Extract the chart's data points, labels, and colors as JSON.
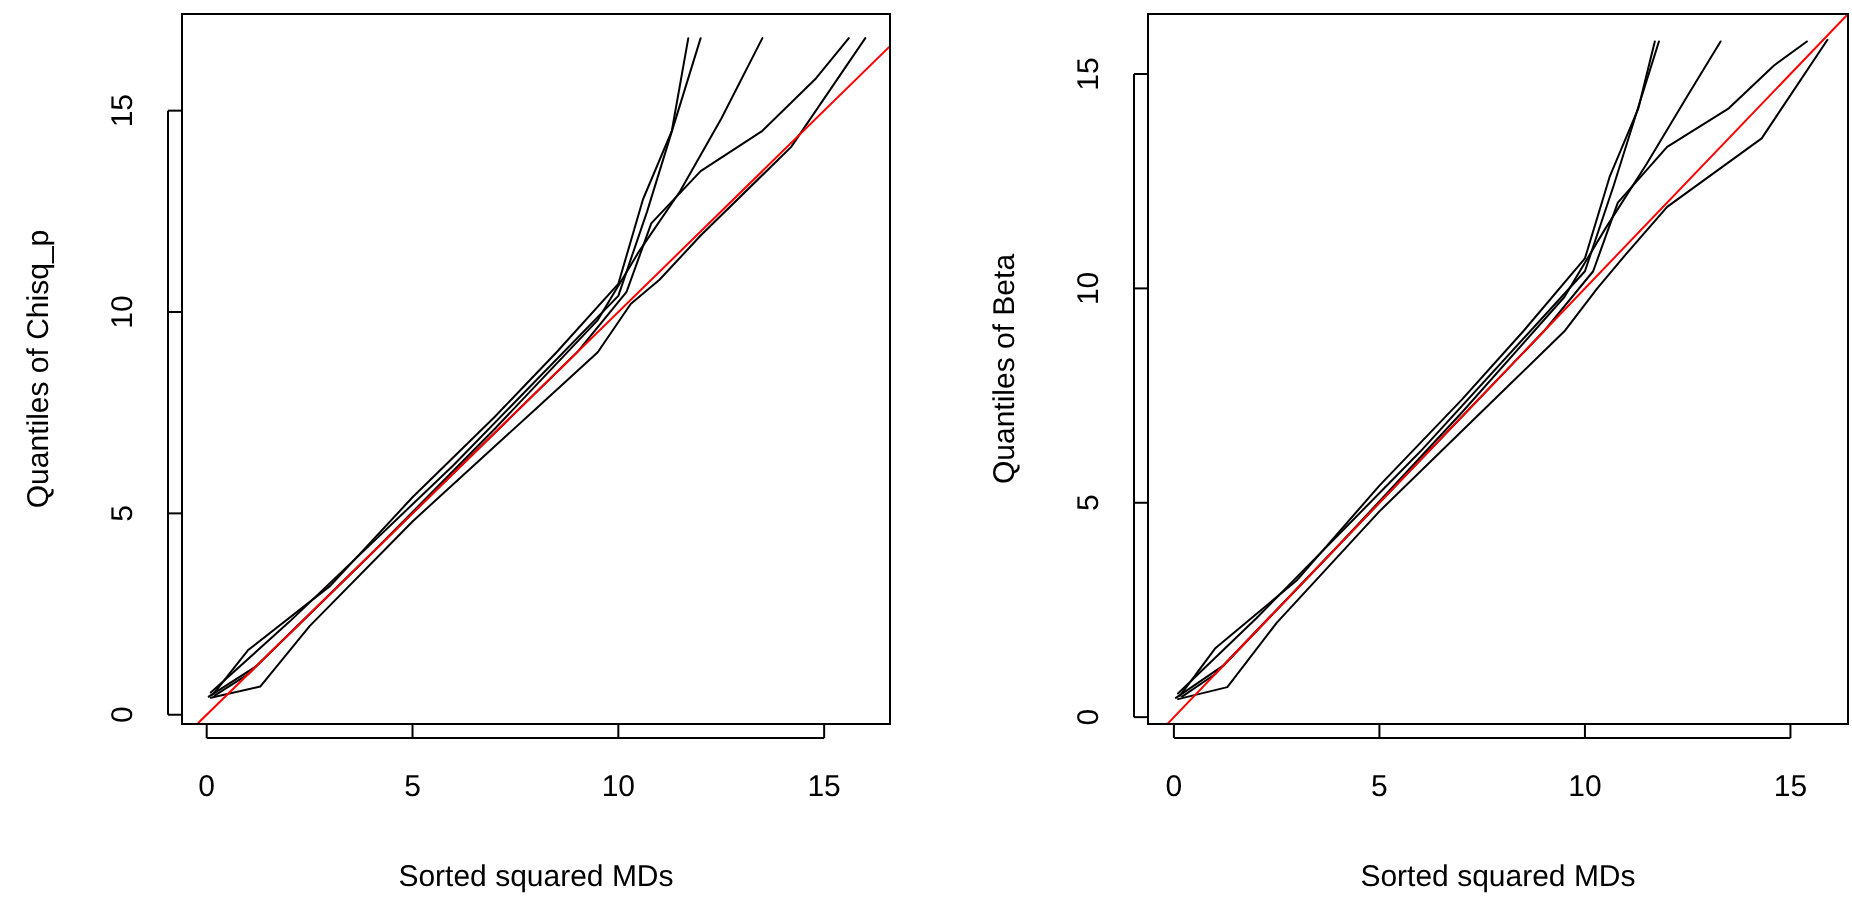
{
  "chart_data": [
    {
      "type": "line",
      "xlabel": "Sorted squared MDs",
      "ylabel": "Quantiles of Chisq_p",
      "xlim": [
        -0.6,
        16.6
      ],
      "ylim": [
        -0.23,
        17.4
      ],
      "xticks": [
        0,
        5,
        10,
        15
      ],
      "yticks": [
        0,
        5,
        10,
        15
      ],
      "line_style": "solid",
      "marker": "none",
      "series": [
        {
          "color": "#000000",
          "x": [
            0.1,
            1.3,
            2.5,
            5,
            8,
            9.5,
            10.3,
            11,
            12,
            14.2,
            16
          ],
          "values": [
            0.42,
            0.7,
            2.2,
            4.8,
            7.6,
            9.0,
            10.2,
            10.8,
            11.9,
            14.1,
            16.8
          ]
        },
        {
          "color": "#000000",
          "x": [
            0.15,
            1,
            3,
            5,
            7,
            8.5,
            10,
            10.6,
            11.3,
            11.7
          ],
          "values": [
            0.5,
            1.6,
            3.2,
            5.4,
            7.4,
            9.0,
            10.7,
            12.8,
            14.5,
            16.8
          ]
        },
        {
          "color": "#000000",
          "x": [
            0.05,
            1.2,
            3,
            5,
            7,
            9,
            10.2,
            10.8,
            12,
            13.5,
            14.8,
            15.6
          ],
          "values": [
            0.45,
            1.2,
            3,
            5,
            7,
            9,
            10.5,
            12.2,
            13.5,
            14.5,
            15.8,
            16.8
          ]
        },
        {
          "color": "#000000",
          "x": [
            0.2,
            1,
            4,
            7,
            9.5,
            10.5,
            11.5,
            12.5,
            13.5
          ],
          "values": [
            0.48,
            1,
            4,
            7.1,
            9.8,
            11.5,
            13,
            14.8,
            16.8
          ]
        },
        {
          "color": "#000000",
          "x": [
            0.1,
            2,
            6,
            10,
            10.7,
            12
          ],
          "values": [
            0.55,
            2.3,
            6.2,
            10.4,
            12.5,
            16.8
          ]
        },
        {
          "color": "#ff0000",
          "x": [
            -0.2,
            16.6
          ],
          "values": [
            -0.2,
            16.6
          ]
        }
      ]
    },
    {
      "type": "line",
      "xlabel": "Sorted squared MDs",
      "ylabel": "Quantiles of Beta",
      "xlim": [
        -0.63,
        16.4
      ],
      "ylim": [
        -0.16,
        16.4
      ],
      "xticks": [
        0,
        5,
        10,
        15
      ],
      "yticks": [
        0,
        5,
        10,
        15
      ],
      "line_style": "solid",
      "marker": "none",
      "series": [
        {
          "color": "#000000",
          "x": [
            0.1,
            1.3,
            2.5,
            5,
            8,
            9.5,
            10.3,
            11,
            12,
            14.3,
            15.9
          ],
          "values": [
            0.42,
            0.7,
            2.2,
            4.8,
            7.6,
            9.0,
            10.0,
            10.8,
            11.9,
            13.5,
            15.8
          ]
        },
        {
          "color": "#000000",
          "x": [
            0.15,
            1,
            3,
            5,
            7,
            8.5,
            10,
            10.6,
            11.3,
            11.7
          ],
          "values": [
            0.5,
            1.6,
            3.2,
            5.4,
            7.4,
            9.0,
            10.7,
            12.6,
            14.2,
            15.76
          ]
        },
        {
          "color": "#000000",
          "x": [
            0.05,
            1.2,
            3,
            5,
            7,
            9,
            10.2,
            10.8,
            12,
            13.5,
            14.6,
            15.4
          ],
          "values": [
            0.45,
            1.2,
            3,
            5,
            7,
            9,
            10.4,
            12.0,
            13.3,
            14.2,
            15.2,
            15.76
          ]
        },
        {
          "color": "#000000",
          "x": [
            0.2,
            1,
            4,
            7,
            9.5,
            10.5,
            11.5,
            12.5,
            13.3
          ],
          "values": [
            0.48,
            1,
            4,
            7.1,
            9.8,
            11.4,
            12.9,
            14.5,
            15.76
          ]
        },
        {
          "color": "#000000",
          "x": [
            0.1,
            2,
            6,
            10,
            10.7,
            11.8
          ],
          "values": [
            0.55,
            2.3,
            6.2,
            10.4,
            12.4,
            15.76
          ]
        },
        {
          "color": "#ff0000",
          "x": [
            -0.15,
            16.4
          ],
          "values": [
            -0.15,
            16.4
          ]
        }
      ]
    }
  ]
}
